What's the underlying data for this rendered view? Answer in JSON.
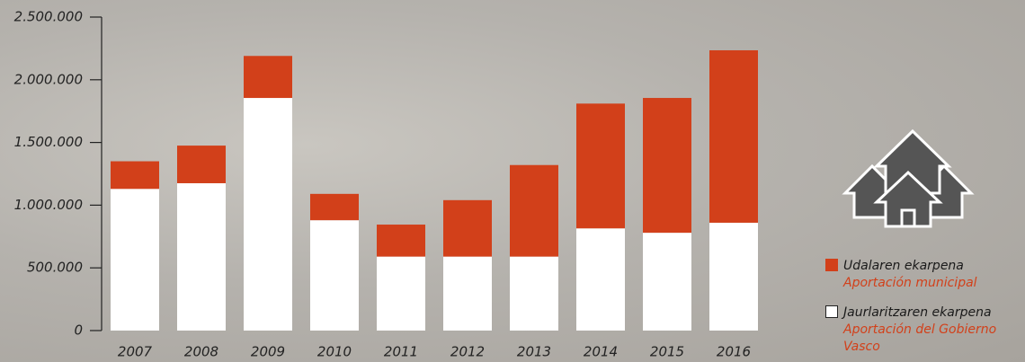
{
  "chart_data": {
    "type": "stacked-bar",
    "categories": [
      "2007",
      "2008",
      "2009",
      "2010",
      "2011",
      "2012",
      "2013",
      "2014",
      "2015",
      "2016"
    ],
    "series": [
      {
        "name": "Jaurlaritzaren ekarpena",
        "translation": "Aportación del Gobierno Vasco",
        "color": "#ffffff",
        "values": [
          1130000,
          1175000,
          1855000,
          880000,
          590000,
          590000,
          590000,
          815000,
          780000,
          860000
        ]
      },
      {
        "name": "Udalaren ekarpena",
        "translation": "Aportación municipal",
        "color": "#d2401a",
        "values": [
          220000,
          300000,
          335000,
          210000,
          255000,
          450000,
          730000,
          995000,
          1075000,
          1375000
        ]
      }
    ],
    "ylim": [
      0,
      2500000
    ],
    "yticks": [
      0,
      {
        "value": 500000,
        "label": "500.000"
      },
      {
        "value": 1000000,
        "label": "1.000.000"
      },
      {
        "value": 1500000,
        "label": "1.500.000"
      },
      {
        "value": 2000000,
        "label": "2.000.000"
      },
      {
        "value": 2500000,
        "label": "2.500.000"
      }
    ],
    "legend_position": "right"
  }
}
